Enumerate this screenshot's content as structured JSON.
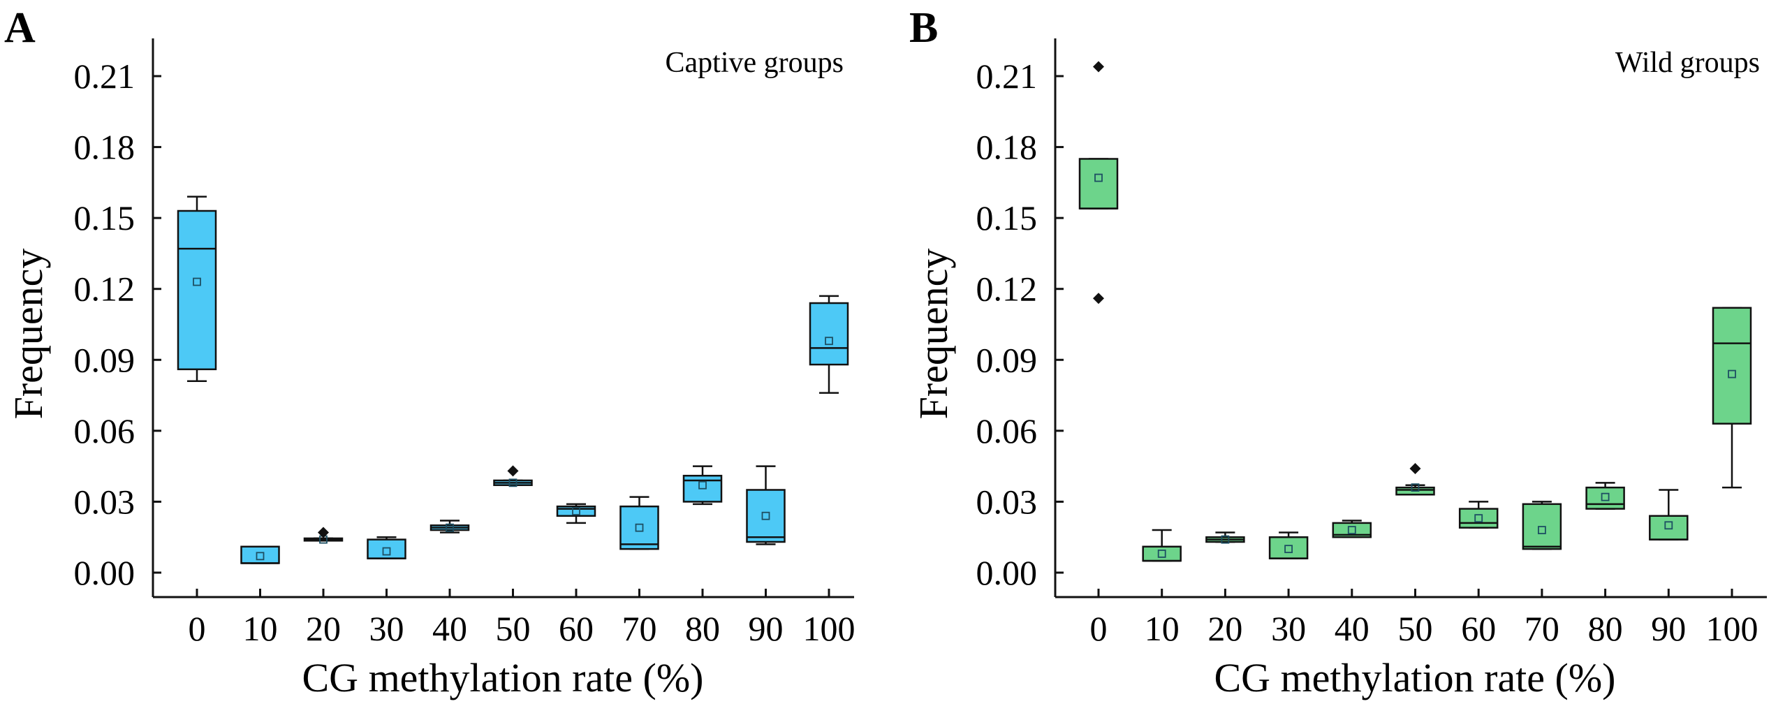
{
  "figure": {
    "panels": [
      "A",
      "B"
    ]
  },
  "chart_data": [
    {
      "type": "box",
      "panel_label": "A",
      "title": "Captive groups",
      "xlabel": "CG methylation rate (%)",
      "ylabel": "Frequency",
      "ylim": [
        -0.015,
        0.23
      ],
      "yticks": [
        "0.00",
        "0.03",
        "0.06",
        "0.09",
        "0.12",
        "0.15",
        "0.18",
        "0.21"
      ],
      "categories": [
        "0",
        "10",
        "20",
        "30",
        "40",
        "50",
        "60",
        "70",
        "80",
        "90",
        "100"
      ],
      "color": "#4dc9f6",
      "boxes": [
        {
          "category": "0",
          "whisker_low": 0.081,
          "q1": 0.086,
          "median": 0.137,
          "q3": 0.153,
          "whisker_high": 0.159,
          "mean": 0.123,
          "outliers": []
        },
        {
          "category": "10",
          "whisker_low": 0.004,
          "q1": 0.004,
          "median": 0.004,
          "q3": 0.011,
          "whisker_high": 0.011,
          "mean": 0.007,
          "outliers": []
        },
        {
          "category": "20",
          "whisker_low": 0.0135,
          "q1": 0.0135,
          "median": 0.014,
          "q3": 0.0145,
          "whisker_high": 0.0145,
          "mean": 0.014,
          "outliers": [
            0.017
          ]
        },
        {
          "category": "30",
          "whisker_low": 0.006,
          "q1": 0.006,
          "median": 0.006,
          "q3": 0.014,
          "whisker_high": 0.015,
          "mean": 0.009,
          "outliers": []
        },
        {
          "category": "40",
          "whisker_low": 0.017,
          "q1": 0.018,
          "median": 0.019,
          "q3": 0.02,
          "whisker_high": 0.022,
          "mean": 0.019,
          "outliers": []
        },
        {
          "category": "50",
          "whisker_low": 0.037,
          "q1": 0.037,
          "median": 0.038,
          "q3": 0.039,
          "whisker_high": 0.039,
          "mean": 0.038,
          "outliers": [
            0.043
          ]
        },
        {
          "category": "60",
          "whisker_low": 0.021,
          "q1": 0.024,
          "median": 0.027,
          "q3": 0.028,
          "whisker_high": 0.029,
          "mean": 0.026,
          "outliers": []
        },
        {
          "category": "70",
          "whisker_low": 0.01,
          "q1": 0.01,
          "median": 0.012,
          "q3": 0.028,
          "whisker_high": 0.032,
          "mean": 0.019,
          "outliers": []
        },
        {
          "category": "80",
          "whisker_low": 0.029,
          "q1": 0.03,
          "median": 0.039,
          "q3": 0.041,
          "whisker_high": 0.045,
          "mean": 0.037,
          "outliers": []
        },
        {
          "category": "90",
          "whisker_low": 0.012,
          "q1": 0.013,
          "median": 0.015,
          "q3": 0.035,
          "whisker_high": 0.045,
          "mean": 0.024,
          "outliers": []
        },
        {
          "category": "100",
          "whisker_low": 0.076,
          "q1": 0.088,
          "median": 0.095,
          "q3": 0.114,
          "whisker_high": 0.117,
          "mean": 0.098,
          "outliers": []
        }
      ]
    },
    {
      "type": "box",
      "panel_label": "B",
      "title": "Wild groups",
      "xlabel": "CG methylation rate (%)",
      "ylabel": "Frequency",
      "ylim": [
        -0.015,
        0.23
      ],
      "yticks": [
        "0.00",
        "0.03",
        "0.06",
        "0.09",
        "0.12",
        "0.15",
        "0.18",
        "0.21"
      ],
      "categories": [
        "0",
        "10",
        "20",
        "30",
        "40",
        "50",
        "60",
        "70",
        "80",
        "90",
        "100"
      ],
      "color": "#6dd48b",
      "boxes": [
        {
          "category": "0",
          "whisker_low": 0.154,
          "q1": 0.154,
          "median": 0.154,
          "q3": 0.175,
          "whisker_high": 0.175,
          "mean": 0.167,
          "outliers": [
            0.214,
            0.116
          ]
        },
        {
          "category": "10",
          "whisker_low": 0.005,
          "q1": 0.005,
          "median": 0.005,
          "q3": 0.011,
          "whisker_high": 0.018,
          "mean": 0.008,
          "outliers": []
        },
        {
          "category": "20",
          "whisker_low": 0.013,
          "q1": 0.013,
          "median": 0.014,
          "q3": 0.015,
          "whisker_high": 0.017,
          "mean": 0.014,
          "outliers": []
        },
        {
          "category": "30",
          "whisker_low": 0.006,
          "q1": 0.006,
          "median": 0.006,
          "q3": 0.015,
          "whisker_high": 0.017,
          "mean": 0.01,
          "outliers": []
        },
        {
          "category": "40",
          "whisker_low": 0.015,
          "q1": 0.015,
          "median": 0.016,
          "q3": 0.021,
          "whisker_high": 0.022,
          "mean": 0.018,
          "outliers": []
        },
        {
          "category": "50",
          "whisker_low": 0.033,
          "q1": 0.033,
          "median": 0.035,
          "q3": 0.036,
          "whisker_high": 0.037,
          "mean": 0.036,
          "outliers": [
            0.044
          ]
        },
        {
          "category": "60",
          "whisker_low": 0.019,
          "q1": 0.019,
          "median": 0.021,
          "q3": 0.027,
          "whisker_high": 0.03,
          "mean": 0.023,
          "outliers": []
        },
        {
          "category": "70",
          "whisker_low": 0.01,
          "q1": 0.01,
          "median": 0.011,
          "q3": 0.029,
          "whisker_high": 0.03,
          "mean": 0.018,
          "outliers": []
        },
        {
          "category": "80",
          "whisker_low": 0.027,
          "q1": 0.027,
          "median": 0.029,
          "q3": 0.036,
          "whisker_high": 0.038,
          "mean": 0.032,
          "outliers": []
        },
        {
          "category": "90",
          "whisker_low": 0.014,
          "q1": 0.014,
          "median": 0.014,
          "q3": 0.024,
          "whisker_high": 0.035,
          "mean": 0.02,
          "outliers": []
        },
        {
          "category": "100",
          "whisker_low": 0.036,
          "q1": 0.063,
          "median": 0.097,
          "q3": 0.112,
          "whisker_high": 0.112,
          "mean": 0.084,
          "outliers": []
        }
      ]
    }
  ]
}
